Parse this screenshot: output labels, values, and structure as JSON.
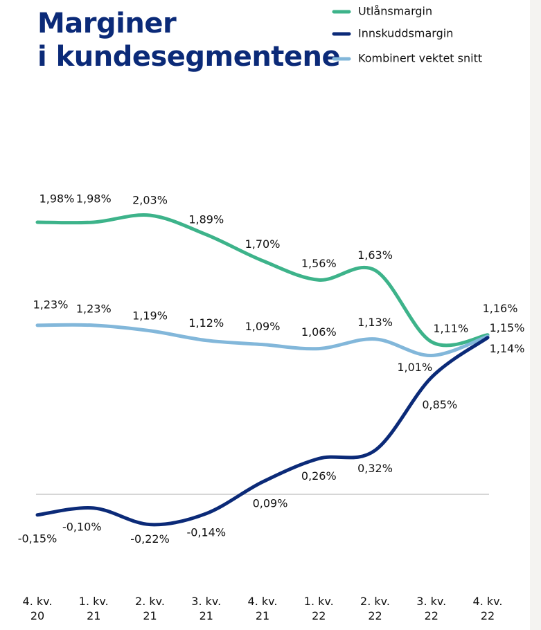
{
  "chart_data": {
    "type": "line",
    "title": "Marginer\ni kundesegmentene",
    "categories": [
      "4. kv.\n20",
      "1. kv.\n21",
      "2. kv.\n21",
      "3. kv.\n21",
      "4. kv.\n21",
      "1. kv.\n22",
      "2. kv.\n22",
      "3. kv.\n22",
      "4. kv.\n22"
    ],
    "series": [
      {
        "name": "Utlånsmargin",
        "color": "#3db38a",
        "values": [
          1.98,
          1.98,
          2.03,
          1.89,
          1.7,
          1.56,
          1.63,
          1.11,
          1.16
        ],
        "value_labels": [
          "1,98%",
          "1,98%",
          "2,03%",
          "1,89%",
          "1,70%",
          "1,56%",
          "1,63%",
          "1,11%",
          "1,16%"
        ]
      },
      {
        "name": "Innskuddsmargin",
        "color": "#0b2a78",
        "values": [
          -0.15,
          -0.1,
          -0.22,
          -0.14,
          0.09,
          0.26,
          0.32,
          0.85,
          1.14
        ],
        "value_labels": [
          "-0,15%",
          "-0,10%",
          "-0,22%",
          "-0,14%",
          "0,09%",
          "0,26%",
          "0,32%",
          "0,85%",
          "1,14%"
        ]
      },
      {
        "name": "Kombinert vektet snitt",
        "color": "#82b7da",
        "values": [
          1.23,
          1.23,
          1.19,
          1.12,
          1.09,
          1.06,
          1.13,
          1.01,
          1.15
        ],
        "value_labels": [
          "1,23%",
          "1,23%",
          "1,19%",
          "1,12%",
          "1,09%",
          "1,06%",
          "1,13%",
          "1,01%",
          "1,15%"
        ]
      }
    ]
  }
}
